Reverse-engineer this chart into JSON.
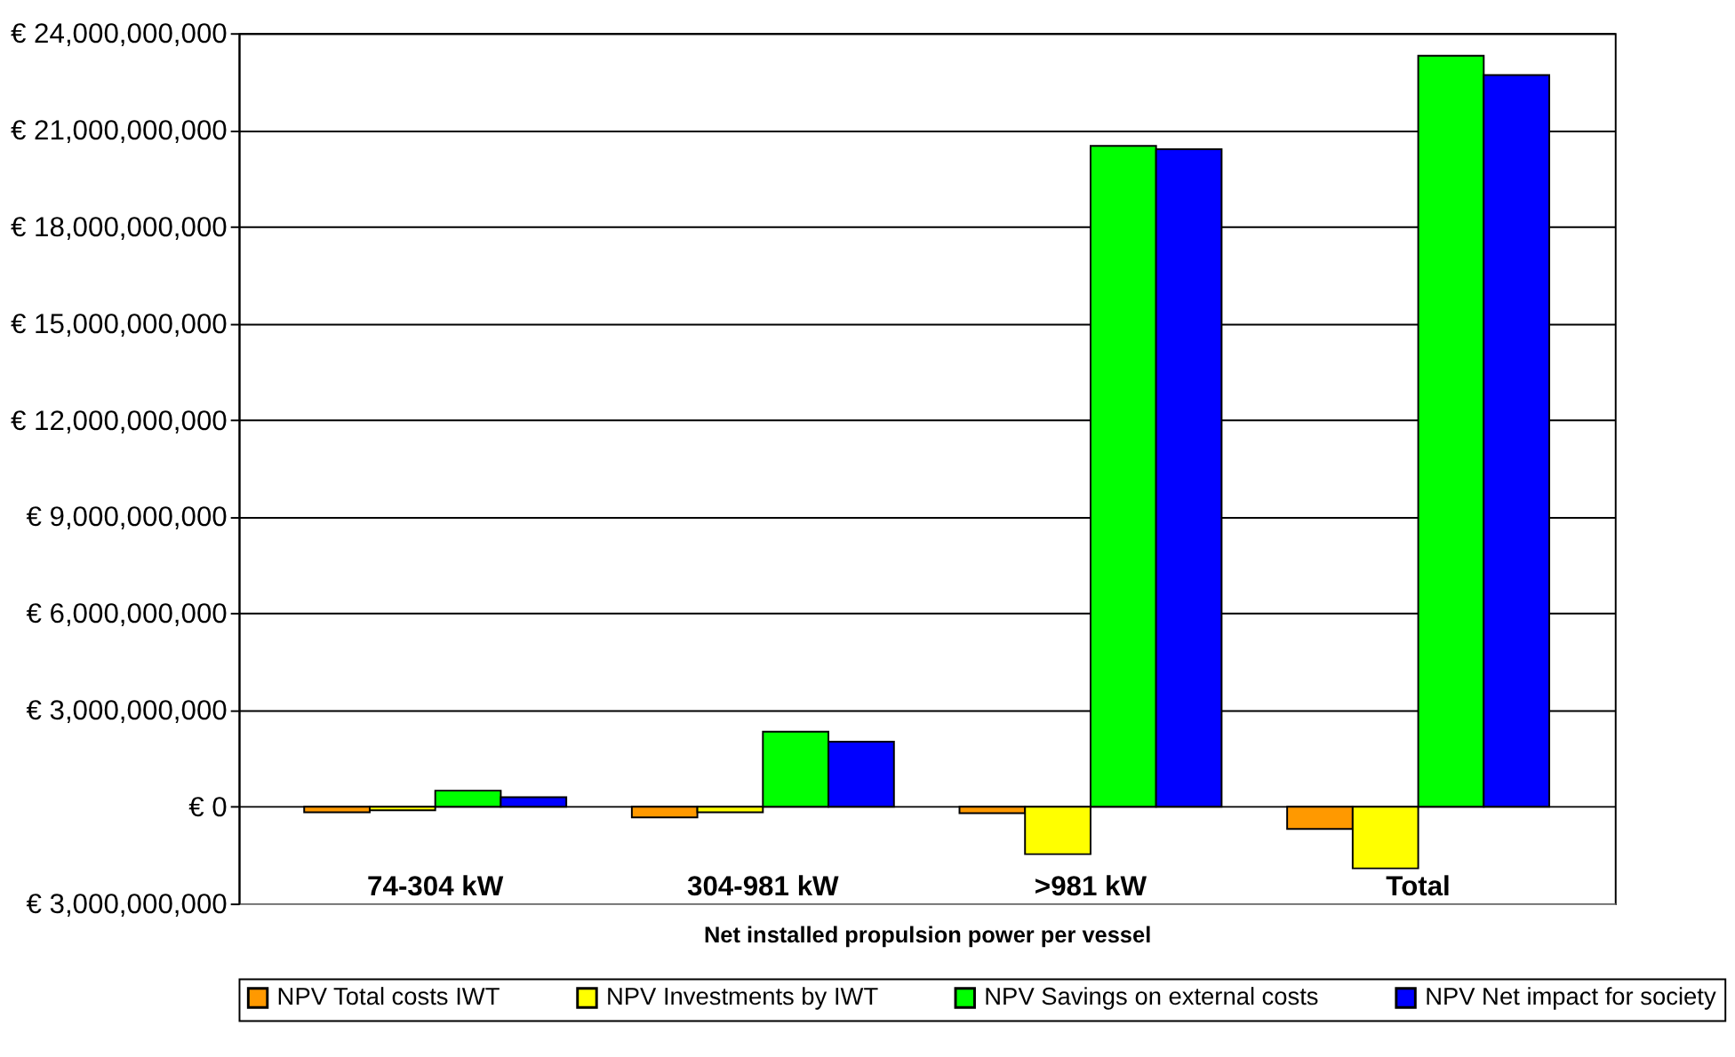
{
  "chart_data": {
    "type": "bar",
    "xlabel": "Net installed propulsion power per vessel",
    "categories": [
      "74-304 kW",
      "304-981 kW",
      ">981 kW",
      "Total"
    ],
    "series": [
      {
        "name": "NPV Total costs IWT",
        "color": "#ff9900",
        "values": [
          -170000000,
          -330000000,
          -200000000,
          -690000000
        ]
      },
      {
        "name": "NPV Investments by IWT",
        "color": "#ffff00",
        "values": [
          -110000000,
          -170000000,
          -1470000000,
          -1910000000
        ]
      },
      {
        "name": "NPV Savings on external costs",
        "color": "#00ff00",
        "values": [
          500000000,
          2330000000,
          20500000000,
          23300000000
        ]
      },
      {
        "name": "NPV Net impact for society",
        "color": "#0000ff",
        "values": [
          300000000,
          2020000000,
          20400000000,
          22700000000
        ]
      }
    ],
    "ylim": [
      -3000000000,
      24000000000
    ],
    "yticks": [
      {
        "value": -3000000000,
        "label": "€ 3,000,000,000"
      },
      {
        "value": 0,
        "label": "€ 0"
      },
      {
        "value": 3000000000,
        "label": "€ 3,000,000,000"
      },
      {
        "value": 6000000000,
        "label": "€ 6,000,000,000"
      },
      {
        "value": 9000000000,
        "label": "€ 9,000,000,000"
      },
      {
        "value": 12000000000,
        "label": "€ 12,000,000,000"
      },
      {
        "value": 15000000000,
        "label": "€ 15,000,000,000"
      },
      {
        "value": 18000000000,
        "label": "€ 18,000,000,000"
      },
      {
        "value": 21000000000,
        "label": "€ 21,000,000,000"
      },
      {
        "value": 24000000000,
        "label": "€ 24,000,000,000"
      }
    ],
    "grid": "y",
    "legend": "bottom"
  }
}
